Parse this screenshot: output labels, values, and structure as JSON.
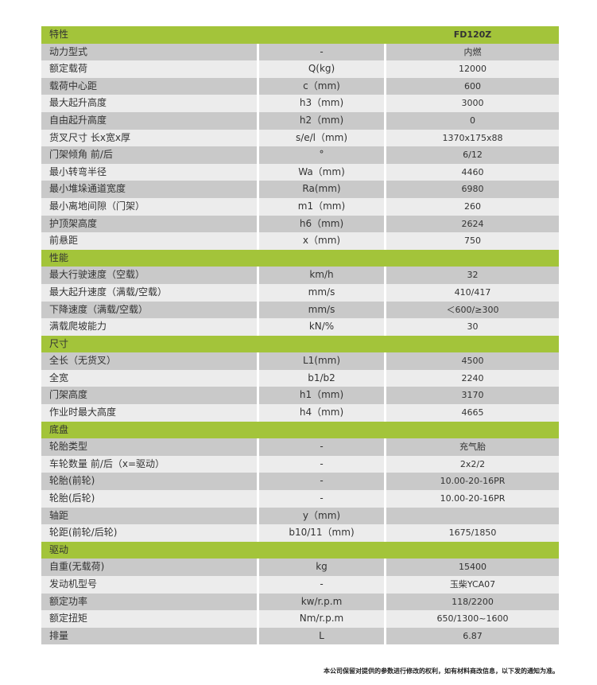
{
  "header": {
    "label": "特性",
    "model": "FD120Z"
  },
  "sections": [
    {
      "title": null,
      "rows": [
        [
          "动力型式",
          "-",
          "内燃"
        ],
        [
          "额定载荷",
          "Q(kg)",
          "12000"
        ],
        [
          "载荷中心距",
          "c（mm)",
          "600"
        ],
        [
          "最大起升高度",
          "h3（mm)",
          "3000"
        ],
        [
          "自由起升高度",
          "h2（mm)",
          "0"
        ],
        [
          "货叉尺寸 长x宽x厚",
          "s/e/l（mm)",
          "1370x175x88"
        ],
        [
          "门架倾角 前/后",
          "°",
          "6/12"
        ],
        [
          "最小转弯半径",
          "Wa（mm)",
          "4460"
        ],
        [
          "最小堆垛通道宽度",
          "Ra(mm)",
          "6980"
        ],
        [
          "最小离地间隙（门架）",
          "m1（mm)",
          "260"
        ],
        [
          "护顶架高度",
          "h6（mm)",
          "2624"
        ],
        [
          "前悬距",
          "x（mm)",
          "750"
        ]
      ]
    },
    {
      "title": "性能",
      "rows": [
        [
          "最大行驶速度（空载）",
          "km/h",
          "32"
        ],
        [
          "最大起升速度（满载/空载）",
          "mm/s",
          "410/417"
        ],
        [
          "下降速度（满载/空载）",
          "mm/s",
          "＜600/≥300"
        ],
        [
          "满载爬坡能力",
          "kN/%",
          "30"
        ]
      ]
    },
    {
      "title": "尺寸",
      "rows": [
        [
          "全长（无货叉）",
          "L1(mm)",
          "4500"
        ],
        [
          "全宽",
          "b1/b2",
          "2240"
        ],
        [
          "门架高度",
          "h1（mm)",
          "3170"
        ],
        [
          "作业时最大高度",
          "h4（mm)",
          "4665"
        ]
      ]
    },
    {
      "title": "底盘",
      "rows": [
        [
          "轮胎类型",
          "-",
          "充气胎"
        ],
        [
          "车轮数量 前/后（x=驱动）",
          "-",
          "2x2/2"
        ],
        [
          "轮胎(前轮)",
          "-",
          "10.00-20-16PR"
        ],
        [
          "轮胎(后轮)",
          "-",
          "10.00-20-16PR"
        ],
        [
          "轴距",
          "y（mm)",
          ""
        ],
        [
          "轮距(前轮/后轮)",
          "b10/11（mm)",
          "1675/1850"
        ]
      ]
    },
    {
      "title": "驱动",
      "rows": [
        [
          "自重(无载荷)",
          "kg",
          "15400"
        ],
        [
          "发动机型号",
          "-",
          "玉柴YCA07"
        ],
        [
          "额定功率",
          "kw/r.p.m",
          "118/2200"
        ],
        [
          "额定扭矩",
          "Nm/r.p.m",
          "650/1300~1600"
        ],
        [
          "排量",
          "L",
          "6.87"
        ]
      ]
    }
  ],
  "footnote": "本公司保留对提供的参数进行修改的权利，如有材料商改信息，以下发的通知为准。",
  "colors": {
    "section": "#a3c43a",
    "row_dark": "#c9c9c9",
    "row_light": "#ececec"
  }
}
